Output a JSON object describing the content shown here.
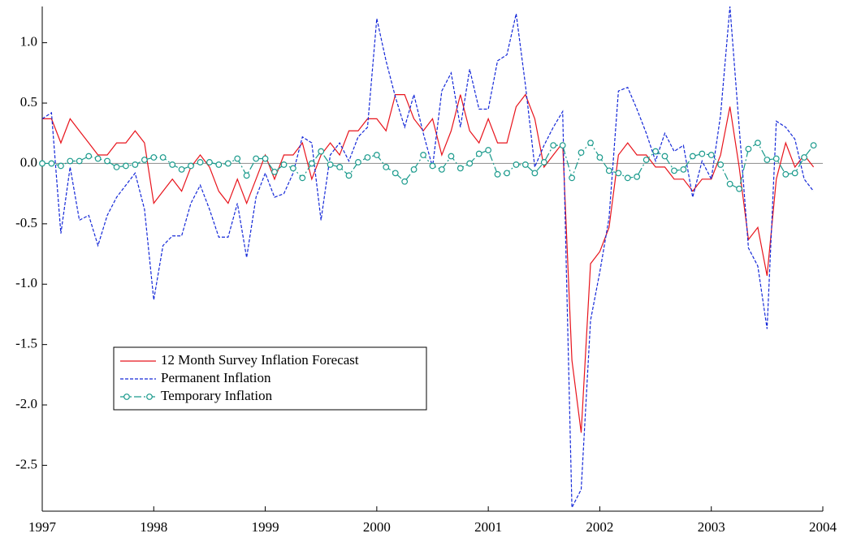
{
  "chart_data": {
    "type": "line",
    "xlim": [
      1997,
      2004
    ],
    "ylim": [
      -2.88,
      1.3
    ],
    "xticks": [
      1997,
      1998,
      1999,
      2000,
      2001,
      2002,
      2003,
      2004
    ],
    "yticks": [
      {
        "value": -2.5,
        "label": "-2.5"
      },
      {
        "value": -2,
        "label": "-2.0"
      },
      {
        "value": -1.5,
        "label": "-1.5"
      },
      {
        "value": -1,
        "label": "-1.0"
      },
      {
        "value": -0.5,
        "label": "-0.5"
      },
      {
        "value": 0,
        "label": "0.0"
      },
      {
        "value": 0.5,
        "label": "0.5"
      },
      {
        "value": 1,
        "label": "1.0"
      }
    ],
    "zero_line": true,
    "legend": "lower left",
    "x": [
      1997,
      1997.083,
      1997.167,
      1997.25,
      1997.333,
      1997.417,
      1997.5,
      1997.583,
      1997.667,
      1997.75,
      1997.833,
      1997.917,
      1998,
      1998.083,
      1998.167,
      1998.25,
      1998.333,
      1998.417,
      1998.5,
      1998.583,
      1998.667,
      1998.75,
      1998.833,
      1998.917,
      1999,
      1999.083,
      1999.167,
      1999.25,
      1999.333,
      1999.417,
      1999.5,
      1999.583,
      1999.667,
      1999.75,
      1999.833,
      1999.917,
      2000,
      2000.083,
      2000.167,
      2000.25,
      2000.333,
      2000.417,
      2000.5,
      2000.583,
      2000.667,
      2000.75,
      2000.833,
      2000.917,
      2001,
      2001.083,
      2001.167,
      2001.25,
      2001.333,
      2001.417,
      2001.5,
      2001.583,
      2001.667,
      2001.75,
      2001.833,
      2001.917,
      2002,
      2002.083,
      2002.167,
      2002.25,
      2002.333,
      2002.417,
      2002.5,
      2002.583,
      2002.667,
      2002.75,
      2002.833,
      2002.917,
      2003,
      2003.083,
      2003.167,
      2003.25,
      2003.333,
      2003.417,
      2003.5,
      2003.583,
      2003.667,
      2003.75,
      2003.833,
      2003.917
    ],
    "series": [
      {
        "name": "12 Month Survey Inflation Forecast",
        "color": "#e8141c",
        "style": "solid",
        "marker": "none",
        "values": [
          0.37,
          0.37,
          0.17,
          0.37,
          0.27,
          0.17,
          0.07,
          0.07,
          0.17,
          0.17,
          0.27,
          0.17,
          -0.33,
          -0.23,
          -0.13,
          -0.23,
          -0.03,
          0.07,
          -0.03,
          -0.23,
          -0.33,
          -0.13,
          -0.33,
          -0.13,
          0.07,
          -0.13,
          0.07,
          0.07,
          0.17,
          -0.13,
          0.07,
          0.17,
          0.07,
          0.27,
          0.27,
          0.37,
          0.37,
          0.27,
          0.57,
          0.57,
          0.37,
          0.27,
          0.37,
          0.07,
          0.27,
          0.57,
          0.27,
          0.17,
          0.37,
          0.17,
          0.17,
          0.47,
          0.57,
          0.37,
          -0.03,
          0.07,
          0.17,
          -1.63,
          -2.23,
          -0.83,
          -0.73,
          -0.53,
          0.07,
          0.17,
          0.07,
          0.07,
          -0.03,
          -0.03,
          -0.13,
          -0.13,
          -0.23,
          -0.13,
          -0.13,
          0.07,
          0.47,
          -0.03,
          -0.63,
          -0.53,
          -0.93,
          -0.13,
          0.17,
          -0.03,
          0.07,
          -0.03
        ]
      },
      {
        "name": "Permanent Inflation",
        "color": "#1428d8",
        "style": "dashed",
        "marker": "none",
        "values": [
          0.37,
          0.42,
          -0.58,
          -0.03,
          -0.47,
          -0.43,
          -0.68,
          -0.43,
          -0.28,
          -0.18,
          -0.08,
          -0.38,
          -1.13,
          -0.68,
          -0.6,
          -0.6,
          -0.33,
          -0.18,
          -0.38,
          -0.61,
          -0.61,
          -0.33,
          -0.78,
          -0.28,
          -0.08,
          -0.28,
          -0.25,
          -0.08,
          0.22,
          0.17,
          -0.47,
          0.07,
          0.17,
          0.02,
          0.22,
          0.3,
          1.2,
          0.85,
          0.55,
          0.3,
          0.57,
          0.25,
          -0.03,
          0.6,
          0.75,
          0.3,
          0.78,
          0.45,
          0.45,
          0.85,
          0.9,
          1.24,
          0.65,
          -0.03,
          0.15,
          0.3,
          0.43,
          -2.85,
          -2.7,
          -1.3,
          -0.9,
          -0.45,
          0.6,
          0.63,
          0.45,
          0.25,
          0.02,
          0.25,
          0.1,
          0.15,
          -0.28,
          0.02,
          -0.13,
          0.4,
          1.3,
          0.3,
          -0.7,
          -0.85,
          -1.37,
          0.35,
          0.3,
          0.2,
          -0.13,
          -0.23
        ]
      },
      {
        "name": "Temporary Inflation",
        "color": "#1a9a8c",
        "style": "dashdot",
        "marker": "circle",
        "values": [
          0,
          0,
          -0.02,
          0.02,
          0.02,
          0.06,
          0.04,
          0.02,
          -0.03,
          -0.02,
          -0.01,
          0.03,
          0.05,
          0.05,
          -0.01,
          -0.05,
          -0.02,
          0.01,
          0.01,
          -0.01,
          0,
          0.04,
          -0.1,
          0.04,
          0.04,
          -0.07,
          -0.01,
          -0.04,
          -0.12,
          0,
          0.1,
          -0.01,
          -0.03,
          -0.1,
          0.01,
          0.05,
          0.07,
          -0.03,
          -0.08,
          -0.15,
          -0.05,
          0.07,
          -0.02,
          -0.05,
          0.06,
          -0.04,
          0,
          0.08,
          0.11,
          -0.09,
          -0.08,
          -0.01,
          -0.01,
          -0.08,
          0.01,
          0.15,
          0.15,
          -0.12,
          0.09,
          0.17,
          0.05,
          -0.06,
          -0.08,
          -0.12,
          -0.11,
          0.03,
          0.1,
          0.06,
          -0.06,
          -0.05,
          0.06,
          0.08,
          0.07,
          -0.01,
          -0.17,
          -0.21,
          0.12,
          0.17,
          0.03,
          0.04,
          -0.09,
          -0.08,
          0.05,
          0.15
        ]
      }
    ]
  }
}
